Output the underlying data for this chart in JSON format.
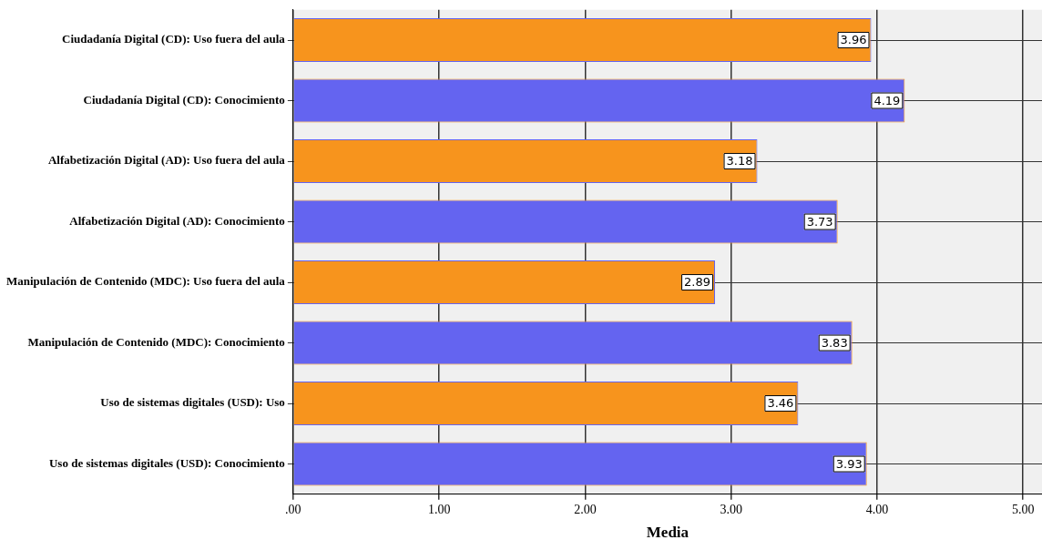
{
  "chart_data": {
    "type": "bar",
    "orientation": "horizontal",
    "xlabel": "Media",
    "categories": [
      "Ciudadanía Digital (CD): Uso fuera del aula",
      "Ciudadanía Digital (CD): Conocimiento",
      "Alfabetización Digital (AD): Uso fuera del aula",
      "Alfabetización Digital (AD): Conocimiento",
      "Manipulación de Contenido (MDC): Uso fuera del aula",
      "Manipulación de Contenido (MDC): Conocimiento",
      "Uso de sistemas digitales (USD): Uso",
      "Uso de sistemas digitales (USD): Conocimiento"
    ],
    "values": [
      3.96,
      4.19,
      3.18,
      3.73,
      2.89,
      3.83,
      3.46,
      3.93
    ],
    "colors": [
      "#f7941d",
      "#6464f0",
      "#f7941d",
      "#6464f0",
      "#f7941d",
      "#6464f0",
      "#f7941d",
      "#6464f0"
    ],
    "xlim": [
      0,
      5.13
    ],
    "xticks": [
      {
        "value": 0,
        "label": ".00"
      },
      {
        "value": 1,
        "label": "1.00"
      },
      {
        "value": 2,
        "label": "2.00"
      },
      {
        "value": 3,
        "label": "3.00"
      },
      {
        "value": 4,
        "label": "4.00"
      },
      {
        "value": 5,
        "label": "5.00"
      }
    ],
    "grid": true,
    "data_labels": true,
    "legend": false
  }
}
